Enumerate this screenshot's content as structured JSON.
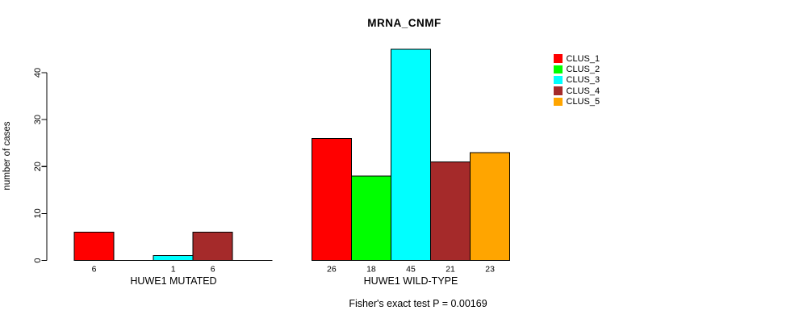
{
  "chart_data": {
    "type": "bar",
    "title": "MRNA_CNMF",
    "ylabel": "number of cases",
    "xlabel": "",
    "ylim": [
      0,
      45
    ],
    "yticks": [
      0,
      10,
      20,
      30,
      40
    ],
    "grid": false,
    "legend_position": "right-outside",
    "series": [
      {
        "name": "CLUS_1",
        "color": "#FF0000"
      },
      {
        "name": "CLUS_2",
        "color": "#00FF00"
      },
      {
        "name": "CLUS_3",
        "color": "#00FFFF"
      },
      {
        "name": "CLUS_4",
        "color": "#A52A2A"
      },
      {
        "name": "CLUS_5",
        "color": "#FFA500"
      }
    ],
    "groups": [
      {
        "label": "HUWE1 MUTATED",
        "values": [
          6,
          0,
          1,
          6,
          0
        ],
        "shown_bar_labels": [
          "6",
          "1",
          "6"
        ]
      },
      {
        "label": "HUWE1 WILD-TYPE",
        "values": [
          26,
          18,
          45,
          21,
          23
        ],
        "shown_bar_labels": [
          "26",
          "18",
          "45",
          "21",
          "23"
        ]
      }
    ],
    "annotation": "Fisher's exact test P = 0.00169"
  }
}
